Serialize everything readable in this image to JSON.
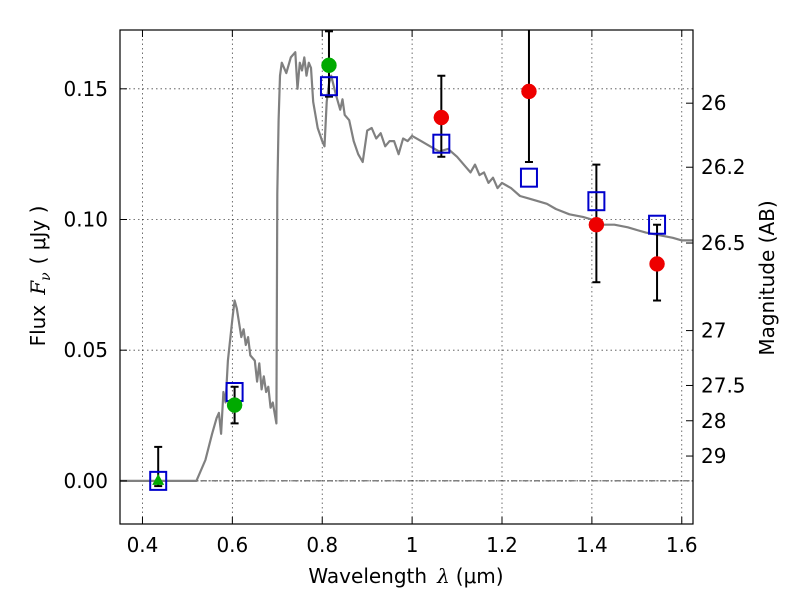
{
  "chart_data": {
    "type": "scatter",
    "title": "",
    "xlabel_text": "Wavelength",
    "xlabel_symbol": "λ",
    "xlabel_unit": "(μm)",
    "ylabel_text": "Flux",
    "ylabel_symbol": "F",
    "ylabel_sub": "ν",
    "ylabel_unit": "( μJy )",
    "y2label": "Magnitude (AB)",
    "xlim": [
      0.35,
      1.625
    ],
    "ylim": [
      -0.0165,
      0.1725
    ],
    "grid": true,
    "x_ticks": [
      {
        "value": 0.4,
        "label": "0.4"
      },
      {
        "value": 0.6,
        "label": "0.6"
      },
      {
        "value": 0.8,
        "label": "0.8"
      },
      {
        "value": 1.0,
        "label": "1"
      },
      {
        "value": 1.2,
        "label": "1.2"
      },
      {
        "value": 1.4,
        "label": "1.4"
      },
      {
        "value": 1.6,
        "label": "1.6"
      }
    ],
    "y_ticks": [
      {
        "value": 0.0,
        "label": "0.00"
      },
      {
        "value": 0.05,
        "label": "0.05"
      },
      {
        "value": 0.1,
        "label": "0.10"
      },
      {
        "value": 0.15,
        "label": "0.15"
      }
    ],
    "mag_ticks": [
      {
        "flux": 0.1445,
        "label": "26"
      },
      {
        "flux": 0.12,
        "label": "26.2"
      },
      {
        "flux": 0.091,
        "label": "26.5"
      },
      {
        "flux": 0.0575,
        "label": "27"
      },
      {
        "flux": 0.0365,
        "label": "27.5"
      },
      {
        "flux": 0.023,
        "label": "28"
      },
      {
        "flux": 0.0095,
        "label": "29"
      }
    ],
    "series": [
      {
        "type": "line",
        "color": "#808080",
        "x": [
          0.35,
          0.52,
          0.54,
          0.555,
          0.565,
          0.57,
          0.575,
          0.58,
          0.585,
          0.59,
          0.6,
          0.605,
          0.61,
          0.62,
          0.625,
          0.63,
          0.635,
          0.64,
          0.65,
          0.655,
          0.66,
          0.665,
          0.67,
          0.675,
          0.68,
          0.685,
          0.69,
          0.695,
          0.698,
          0.7,
          0.703,
          0.706,
          0.71,
          0.72,
          0.73,
          0.74,
          0.745,
          0.75,
          0.755,
          0.76,
          0.765,
          0.77,
          0.775,
          0.78,
          0.79,
          0.8,
          0.805,
          0.81,
          0.815,
          0.82,
          0.83,
          0.84,
          0.845,
          0.85,
          0.86,
          0.87,
          0.88,
          0.89,
          0.9,
          0.91,
          0.92,
          0.93,
          0.94,
          0.95,
          0.96,
          0.97,
          0.98,
          0.99,
          1.0,
          1.02,
          1.04,
          1.06,
          1.08,
          1.1,
          1.12,
          1.13,
          1.14,
          1.15,
          1.16,
          1.17,
          1.18,
          1.19,
          1.2,
          1.22,
          1.24,
          1.26,
          1.28,
          1.3,
          1.32,
          1.35,
          1.38,
          1.4,
          1.42,
          1.45,
          1.48,
          1.5,
          1.52,
          1.55,
          1.58,
          1.6,
          1.625
        ],
        "y": [
          0.0,
          0.0,
          0.008,
          0.018,
          0.024,
          0.026,
          0.018,
          0.034,
          0.03,
          0.046,
          0.062,
          0.069,
          0.066,
          0.055,
          0.058,
          0.052,
          0.055,
          0.048,
          0.046,
          0.038,
          0.045,
          0.035,
          0.04,
          0.034,
          0.036,
          0.028,
          0.03,
          0.025,
          0.022,
          0.11,
          0.138,
          0.155,
          0.16,
          0.156,
          0.162,
          0.164,
          0.15,
          0.16,
          0.157,
          0.162,
          0.155,
          0.16,
          0.158,
          0.145,
          0.135,
          0.13,
          0.128,
          0.145,
          0.152,
          0.155,
          0.148,
          0.142,
          0.146,
          0.14,
          0.138,
          0.13,
          0.125,
          0.122,
          0.134,
          0.135,
          0.131,
          0.133,
          0.128,
          0.13,
          0.13,
          0.125,
          0.131,
          0.13,
          0.132,
          0.13,
          0.128,
          0.126,
          0.127,
          0.124,
          0.12,
          0.118,
          0.121,
          0.117,
          0.118,
          0.114,
          0.116,
          0.112,
          0.114,
          0.112,
          0.109,
          0.108,
          0.107,
          0.106,
          0.104,
          0.102,
          0.101,
          0.1,
          0.098,
          0.098,
          0.097,
          0.096,
          0.095,
          0.094,
          0.093,
          0.092,
          0.092
        ]
      },
      {
        "type": "boxes",
        "color": "#0000cc",
        "x": [
          0.435,
          0.605,
          0.815,
          1.065,
          1.26,
          1.41,
          1.545
        ],
        "y": [
          0.0,
          0.034,
          0.151,
          0.129,
          0.116,
          0.107,
          0.098
        ]
      },
      {
        "type": "circles",
        "color": "#00aa00",
        "x": [
          0.605,
          0.815
        ],
        "y": [
          0.029,
          0.159
        ]
      },
      {
        "type": "triangles",
        "color": "#00aa00",
        "x": [
          0.435
        ],
        "y": [
          0.0
        ]
      },
      {
        "type": "circles",
        "color": "#ee0000",
        "x": [
          1.065,
          1.26,
          1.41,
          1.545
        ],
        "y": [
          0.139,
          0.149,
          0.098,
          0.083
        ]
      },
      {
        "type": "errorbars",
        "color": "#000000",
        "x": [
          0.435,
          0.605,
          0.815,
          1.065,
          1.26,
          1.41,
          1.545
        ],
        "low": [
          -0.002,
          0.022,
          0.147,
          0.124,
          0.122,
          0.076,
          0.069
        ],
        "high": [
          0.013,
          0.036,
          0.172,
          0.155,
          0.1725,
          0.121,
          0.098
        ]
      }
    ]
  }
}
